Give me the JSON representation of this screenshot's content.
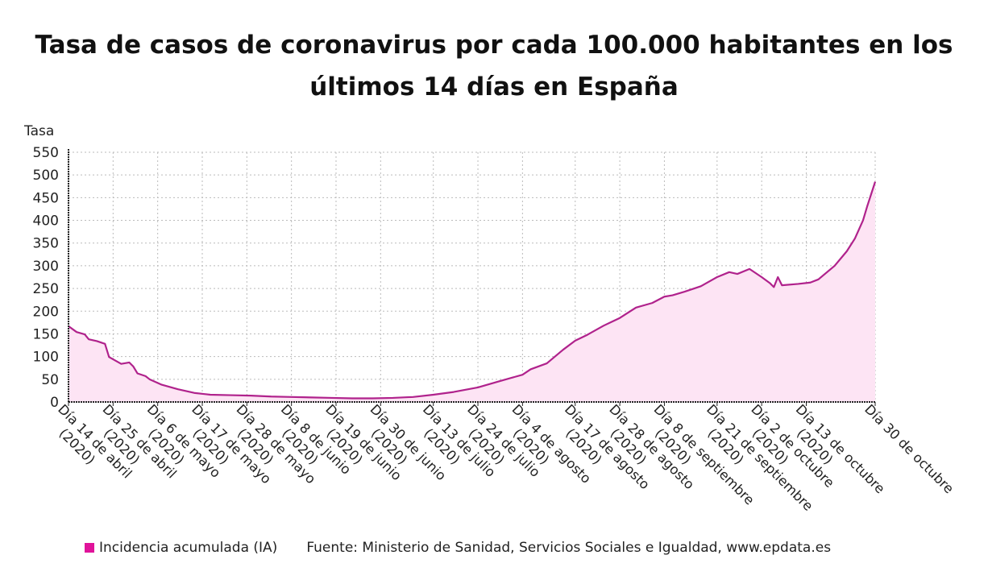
{
  "chart_data": {
    "type": "area",
    "title": "Tasa de casos de coronavirus por cada 100.000 habitantes en los últimos 14 días en España",
    "ylabel": "Tasa",
    "xlabel": "",
    "ylim": [
      0,
      550
    ],
    "yticks": [
      0,
      50,
      100,
      150,
      200,
      250,
      300,
      350,
      400,
      450,
      500,
      550
    ],
    "xlim": [
      "2020-04-14",
      "2020-10-30"
    ],
    "grid": true,
    "xticks": [
      {
        "date": "2020-04-14",
        "label": "Día 14 de abril",
        "sub": "(2020)"
      },
      {
        "date": "2020-04-25",
        "label": "Día 25 de abril",
        "sub": "(2020)"
      },
      {
        "date": "2020-05-06",
        "label": "Día 6 de mayo",
        "sub": "(2020)"
      },
      {
        "date": "2020-05-17",
        "label": "Día 17 de mayo",
        "sub": "(2020)"
      },
      {
        "date": "2020-05-28",
        "label": "Día 28 de mayo",
        "sub": "(2020)"
      },
      {
        "date": "2020-06-08",
        "label": "Día 8 de junio",
        "sub": "(2020)"
      },
      {
        "date": "2020-06-19",
        "label": "Día 19 de junio",
        "sub": "(2020)"
      },
      {
        "date": "2020-06-30",
        "label": "Día 30 de junio",
        "sub": "(2020)"
      },
      {
        "date": "2020-07-13",
        "label": "Día 13 de julio",
        "sub": "(2020)"
      },
      {
        "date": "2020-07-24",
        "label": "Día 24 de julio",
        "sub": "(2020)"
      },
      {
        "date": "2020-08-04",
        "label": "Día 4 de agosto",
        "sub": "(2020)"
      },
      {
        "date": "2020-08-17",
        "label": "Día 17 de agosto",
        "sub": "(2020)"
      },
      {
        "date": "2020-08-28",
        "label": "Día 28 de agosto",
        "sub": "(2020)"
      },
      {
        "date": "2020-09-08",
        "label": "Día 8 de septiembre",
        "sub": "(2020)"
      },
      {
        "date": "2020-09-21",
        "label": "Día 21 de septiembre",
        "sub": "(2020)"
      },
      {
        "date": "2020-10-02",
        "label": "Día 2 de octubre",
        "sub": "(2020)"
      },
      {
        "date": "2020-10-13",
        "label": "Día 13 de octubre",
        "sub": "(2020)"
      },
      {
        "date": "2020-10-30",
        "label": "Día 30 de octubre",
        "sub": ""
      }
    ],
    "legend_position": "bottom-left",
    "series": [
      {
        "name": "Incidencia acumulada (IA)",
        "color": "#b0228c",
        "fill": "#fde4f4",
        "legend_color": "#e0139a",
        "points": [
          [
            "2020-04-14",
            167
          ],
          [
            "2020-04-16",
            154
          ],
          [
            "2020-04-18",
            149
          ],
          [
            "2020-04-19",
            138
          ],
          [
            "2020-04-21",
            134
          ],
          [
            "2020-04-23",
            128
          ],
          [
            "2020-04-24",
            99
          ],
          [
            "2020-04-27",
            84
          ],
          [
            "2020-04-29",
            87
          ],
          [
            "2020-04-30",
            78
          ],
          [
            "2020-05-01",
            63
          ],
          [
            "2020-05-03",
            57
          ],
          [
            "2020-05-04",
            50
          ],
          [
            "2020-05-07",
            38
          ],
          [
            "2020-05-11",
            28
          ],
          [
            "2020-05-15",
            20
          ],
          [
            "2020-05-19",
            16
          ],
          [
            "2020-05-24",
            15
          ],
          [
            "2020-05-29",
            14
          ],
          [
            "2020-06-03",
            12
          ],
          [
            "2020-06-08",
            11
          ],
          [
            "2020-06-13",
            10
          ],
          [
            "2020-06-18",
            9
          ],
          [
            "2020-06-23",
            8
          ],
          [
            "2020-06-28",
            8
          ],
          [
            "2020-07-03",
            9
          ],
          [
            "2020-07-08",
            11
          ],
          [
            "2020-07-13",
            16
          ],
          [
            "2020-07-18",
            22
          ],
          [
            "2020-07-24",
            32
          ],
          [
            "2020-07-29",
            45
          ],
          [
            "2020-08-02",
            55
          ],
          [
            "2020-08-04",
            60
          ],
          [
            "2020-08-06",
            72
          ],
          [
            "2020-08-10",
            85
          ],
          [
            "2020-08-14",
            115
          ],
          [
            "2020-08-17",
            135
          ],
          [
            "2020-08-20",
            148
          ],
          [
            "2020-08-24",
            168
          ],
          [
            "2020-08-28",
            185
          ],
          [
            "2020-09-01",
            208
          ],
          [
            "2020-09-05",
            218
          ],
          [
            "2020-09-08",
            232
          ],
          [
            "2020-09-10",
            235
          ],
          [
            "2020-09-13",
            243
          ],
          [
            "2020-09-17",
            255
          ],
          [
            "2020-09-21",
            275
          ],
          [
            "2020-09-24",
            286
          ],
          [
            "2020-09-26",
            282
          ],
          [
            "2020-09-29",
            293
          ],
          [
            "2020-10-02",
            275
          ],
          [
            "2020-10-04",
            262
          ],
          [
            "2020-10-05",
            253
          ],
          [
            "2020-10-06",
            275
          ],
          [
            "2020-10-07",
            257
          ],
          [
            "2020-10-11",
            260
          ],
          [
            "2020-10-14",
            263
          ],
          [
            "2020-10-16",
            270
          ],
          [
            "2020-10-20",
            300
          ],
          [
            "2020-10-23",
            332
          ],
          [
            "2020-10-25",
            360
          ],
          [
            "2020-10-27",
            400
          ],
          [
            "2020-10-28",
            430
          ],
          [
            "2020-10-30",
            485
          ]
        ]
      }
    ]
  },
  "footer": {
    "legend_label": "Incidencia acumulada (IA)",
    "source": "Fuente: Ministerio de Sanidad, Servicios Sociales e Igualdad, www.epdata.es"
  }
}
